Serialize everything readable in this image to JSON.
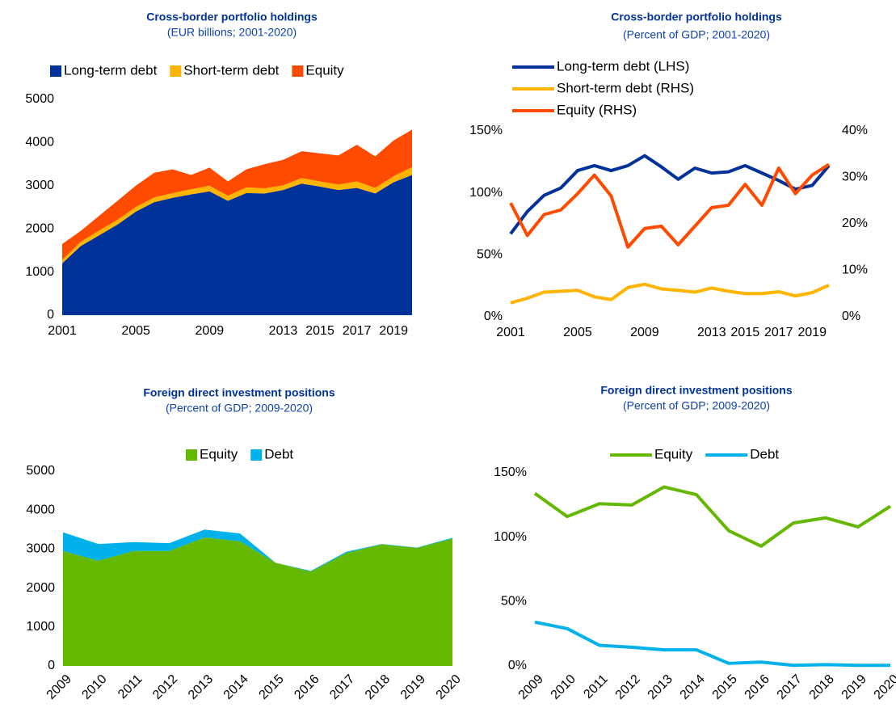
{
  "chart_data": [
    {
      "type": "area",
      "stacked": true,
      "title": "Cross-border portfolio holdings",
      "subtitle": "(EUR billions; 2001-2020)",
      "x": [
        2001,
        2002,
        2003,
        2004,
        2005,
        2006,
        2007,
        2008,
        2009,
        2010,
        2011,
        2012,
        2013,
        2014,
        2015,
        2016,
        2017,
        2018,
        2019,
        2020
      ],
      "xlim": [
        2001,
        2020
      ],
      "xticks": [
        2001,
        2005,
        2009,
        2013,
        2015,
        2017,
        2019
      ],
      "ylim": [
        0,
        5000
      ],
      "yticks": [
        0,
        1000,
        2000,
        3000,
        4000,
        5000
      ],
      "series": [
        {
          "name": "Long-term debt",
          "color": "#003299",
          "values": [
            1200,
            1600,
            1850,
            2100,
            2400,
            2620,
            2720,
            2800,
            2870,
            2650,
            2830,
            2820,
            2900,
            3050,
            2980,
            2900,
            2950,
            2820,
            3080,
            3250
          ]
        },
        {
          "name": "Short-term debt",
          "color": "#ffb400",
          "values": [
            80,
            100,
            110,
            110,
            110,
            110,
            110,
            120,
            130,
            120,
            130,
            120,
            110,
            130,
            120,
            130,
            150,
            130,
            140,
            180
          ]
        },
        {
          "name": "Equity",
          "color": "#ff4b00",
          "values": [
            370,
            250,
            340,
            440,
            490,
            570,
            550,
            330,
            420,
            330,
            420,
            560,
            590,
            620,
            650,
            670,
            850,
            730,
            830,
            870
          ]
        }
      ]
    },
    {
      "type": "line",
      "title": "Cross-border portfolio holdings",
      "subtitle": "(Percent of GDP; 2001-2020)",
      "x": [
        2001,
        2002,
        2003,
        2004,
        2005,
        2006,
        2007,
        2008,
        2009,
        2010,
        2011,
        2012,
        2013,
        2014,
        2015,
        2016,
        2017,
        2018,
        2019,
        2020
      ],
      "xlim": [
        2001,
        2020
      ],
      "xticks": [
        2001,
        2005,
        2009,
        2013,
        2015,
        2017,
        2019
      ],
      "ylim": [
        0,
        150
      ],
      "yticks": [
        {
          "value": 0,
          "label": "0%"
        },
        {
          "value": 50,
          "label": "50%"
        },
        {
          "value": 100,
          "label": "100%"
        },
        {
          "value": 150,
          "label": "150%"
        }
      ],
      "y2lim": [
        0,
        40
      ],
      "y2ticks": [
        {
          "value": 0,
          "label": "0%"
        },
        {
          "value": 10,
          "label": "10%"
        },
        {
          "value": 20,
          "label": "20%"
        },
        {
          "value": 30,
          "label": "30%"
        },
        {
          "value": 40,
          "label": "40%"
        }
      ],
      "series": [
        {
          "name": "Long-term debt (LHS)",
          "color": "#003299",
          "values": [
            67,
            85,
            98,
            104,
            118,
            122,
            118,
            122,
            130,
            121,
            111,
            120,
            116,
            117,
            122,
            116,
            110,
            103,
            106,
            122
          ]
        },
        {
          "name": "Short-term debt (RHS)",
          "color": "#ffb400",
          "axis": "y2",
          "values": [
            3.0,
            4.0,
            5.3,
            5.5,
            5.7,
            4.3,
            3.7,
            6.3,
            7.0,
            6.0,
            5.7,
            5.3,
            6.2,
            5.5,
            5.0,
            5.0,
            5.4,
            4.5,
            5.2,
            6.8
          ]
        },
        {
          "name": "Equity (RHS)",
          "color": "#ff4b00",
          "axis": "y2",
          "values": [
            24.5,
            17.5,
            22,
            23,
            26.5,
            30.5,
            26,
            15,
            19,
            19.5,
            15.5,
            19.5,
            23.5,
            24,
            28.5,
            24,
            32,
            26.5,
            30.5,
            32.8
          ]
        }
      ]
    },
    {
      "type": "area",
      "stacked": true,
      "title": "Foreign direct investment positions",
      "subtitle": "(Percent of GDP; 2009-2020)",
      "categories": [
        "2009",
        "2010",
        "2011",
        "2012",
        "2013",
        "2014",
        "2015",
        "2016",
        "2017",
        "2018",
        "2019",
        "2020"
      ],
      "ylim": [
        0,
        5000
      ],
      "yticks": [
        0,
        1000,
        2000,
        3000,
        4000,
        5000
      ],
      "series": [
        {
          "name": "Equity",
          "color": "#65b800",
          "values": [
            2950,
            2700,
            2950,
            2950,
            3300,
            3200,
            2650,
            2420,
            2900,
            3120,
            3030,
            3270
          ]
        },
        {
          "name": "Debt",
          "color": "#00b1ea",
          "values": [
            480,
            430,
            230,
            200,
            200,
            200,
            0,
            20,
            30,
            10,
            10,
            20
          ]
        }
      ]
    },
    {
      "type": "line",
      "title": "Foreign direct investment positions",
      "subtitle": "(Percent of GDP; 2009-2020)",
      "categories": [
        "2009",
        "2010",
        "2011",
        "2012",
        "2013",
        "2014",
        "2015",
        "2016",
        "2017",
        "2018",
        "2019",
        "2020"
      ],
      "ylim": [
        0,
        150
      ],
      "yticks": [
        {
          "value": 0,
          "label": "0%"
        },
        {
          "value": 50,
          "label": "50%"
        },
        {
          "value": 100,
          "label": "100%"
        },
        {
          "value": 150,
          "label": "150%"
        }
      ],
      "series": [
        {
          "name": "Equity",
          "color": "#65b800",
          "values": [
            134,
            116,
            126,
            125,
            139,
            133,
            105,
            93,
            111,
            115,
            108,
            124
          ]
        },
        {
          "name": "Debt",
          "color": "#00b1ea",
          "values": [
            34,
            29,
            16,
            14.5,
            12.5,
            12.5,
            2,
            3,
            0.5,
            1,
            0.5,
            0.5
          ]
        }
      ]
    }
  ]
}
